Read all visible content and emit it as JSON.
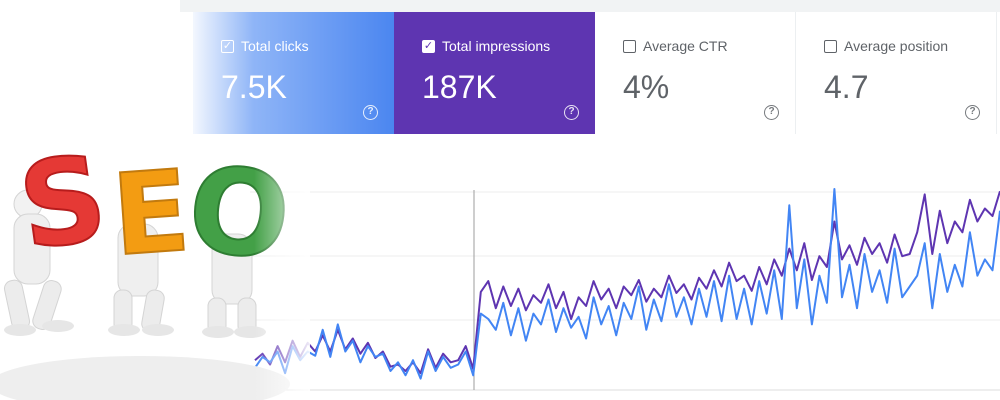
{
  "metrics": [
    {
      "key": "clicks",
      "label": "Total clicks",
      "value": "7.5K",
      "checked": true
    },
    {
      "key": "impressions",
      "label": "Total impressions",
      "value": "187K",
      "checked": true
    },
    {
      "key": "ctr",
      "label": "Average CTR",
      "value": "4%",
      "checked": false
    },
    {
      "key": "position",
      "label": "Average position",
      "value": "4.7",
      "checked": false
    }
  ],
  "icons": {
    "help": "help-circle-icon",
    "check": "check-icon"
  },
  "colors": {
    "clicks": "#4285f4",
    "impressions": "#5e35b1",
    "letter_s": "#e53935",
    "letter_e": "#f39c12",
    "letter_o": "#43a047"
  },
  "seo_letters": [
    "S",
    "E",
    "O"
  ],
  "chart_data": {
    "type": "line",
    "title": "",
    "xlabel": "",
    "ylabel": "",
    "grid": true,
    "series": [
      {
        "name": "Total impressions",
        "color": "#5e35b1",
        "values": [
          22,
          28,
          18,
          35,
          20,
          40,
          25,
          38,
          30,
          45,
          30,
          50,
          32,
          42,
          28,
          38,
          24,
          30,
          16,
          18,
          12,
          20,
          10,
          32,
          15,
          28,
          20,
          22,
          35,
          14,
          85,
          95,
          70,
          90,
          72,
          88,
          68,
          82,
          75,
          92,
          70,
          85,
          60,
          80,
          72,
          95,
          78,
          88,
          70,
          90,
          82,
          96,
          76,
          88,
          80,
          100,
          84,
          92,
          78,
          98,
          88,
          105,
          90,
          112,
          95,
          100,
          86,
          108,
          92,
          115,
          100,
          125,
          105,
          130,
          96,
          118,
          108,
          150,
          115,
          128,
          110,
          135,
          120,
          130,
          112,
          138,
          118,
          120,
          140,
          175,
          120,
          160,
          130,
          150,
          140,
          170,
          150,
          162,
          155,
          178
        ]
      },
      {
        "name": "Total clicks",
        "color": "#4285f4",
        "values": [
          15,
          25,
          20,
          30,
          10,
          35,
          22,
          30,
          26,
          50,
          25,
          55,
          30,
          40,
          20,
          35,
          25,
          28,
          12,
          20,
          8,
          22,
          5,
          30,
          12,
          25,
          15,
          18,
          30,
          8,
          65,
          60,
          50,
          75,
          45,
          70,
          40,
          65,
          55,
          78,
          48,
          70,
          52,
          62,
          42,
          80,
          55,
          72,
          45,
          75,
          60,
          90,
          50,
          78,
          58,
          92,
          62,
          80,
          55,
          88,
          62,
          95,
          58,
          100,
          60,
          88,
          55,
          95,
          65,
          105,
          60,
          165,
          70,
          115,
          55,
          100,
          75,
          180,
          80,
          110,
          70,
          120,
          85,
          105,
          75,
          125,
          80,
          90,
          100,
          130,
          70,
          120,
          85,
          110,
          90,
          140,
          100,
          115,
          105,
          160
        ]
      }
    ]
  }
}
